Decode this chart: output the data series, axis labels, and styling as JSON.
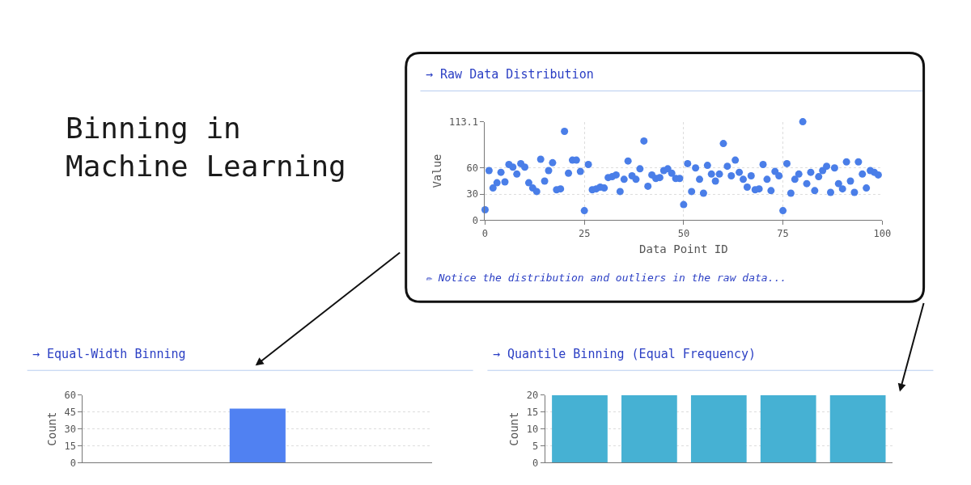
{
  "chart_data": [
    {
      "type": "other",
      "title": "Binning in\nMachine Learning"
    },
    {
      "type": "scatter",
      "title": "→ Raw Data Distribution",
      "xlabel": "Data Point ID",
      "ylabel": "Value",
      "x": [
        0,
        1,
        2,
        3,
        4,
        5,
        6,
        7,
        8,
        9,
        10,
        11,
        12,
        13,
        14,
        15,
        16,
        17,
        18,
        19,
        20,
        21,
        22,
        23,
        24,
        25,
        26,
        27,
        28,
        29,
        30,
        31,
        32,
        33,
        34,
        35,
        36,
        37,
        38,
        39,
        40,
        41,
        42,
        43,
        44,
        45,
        46,
        47,
        48,
        49,
        50,
        51,
        52,
        53,
        54,
        55,
        56,
        57,
        58,
        59,
        60,
        61,
        62,
        63,
        64,
        65,
        66,
        67,
        68,
        69,
        70,
        71,
        72,
        73,
        74,
        75,
        76,
        77,
        78,
        79,
        80,
        81,
        82,
        83,
        84,
        85,
        86,
        87,
        88,
        89,
        90,
        91,
        92,
        93,
        94,
        95,
        96,
        97,
        98,
        99
      ],
      "values": [
        12,
        57,
        37,
        43,
        55,
        44,
        64,
        61,
        53,
        65,
        61,
        43,
        37,
        33,
        70,
        45,
        57,
        66,
        35,
        36,
        102,
        54,
        69,
        69,
        56,
        11,
        64,
        35,
        36,
        38,
        37,
        49,
        50,
        52,
        33,
        47,
        68,
        51,
        47,
        59,
        91,
        39,
        52,
        48,
        49,
        57,
        59,
        54,
        48,
        48,
        18,
        65,
        33,
        60,
        47,
        31,
        63,
        53,
        45,
        53,
        88,
        62,
        51,
        69,
        55,
        47,
        38,
        51,
        35,
        36,
        64,
        47,
        34,
        56,
        51,
        11,
        65,
        31,
        47,
        53,
        113.1,
        42,
        55,
        34,
        50,
        57,
        62,
        32,
        60,
        42,
        36,
        67,
        45,
        32,
        67,
        53,
        37,
        57,
        55,
        52
      ],
      "color": "#4a7ee8",
      "marker": "circle",
      "xlim": [
        0,
        100
      ],
      "xticks": [
        0,
        25,
        50,
        75,
        100
      ],
      "ylim": [
        0,
        113.1
      ],
      "yticks": [
        0,
        30,
        60,
        113.1
      ],
      "grid": true,
      "annotations": [
        "✏ Notice the distribution and outliers in the raw data..."
      ]
    },
    {
      "type": "bar",
      "title": "→ Equal-Width Binning",
      "ylabel": "Count",
      "categories": [
        null,
        null,
        null,
        null,
        null
      ],
      "values": [
        null,
        null,
        48,
        null,
        null
      ],
      "color": "#5081f2",
      "ylim": [
        0,
        60
      ],
      "yticks": [
        0,
        15,
        30,
        45,
        60
      ],
      "grid": true
    },
    {
      "type": "bar",
      "title": "→ Quantile Binning (Equal Frequency)",
      "ylabel": "Count",
      "categories": [
        null,
        null,
        null,
        null,
        null
      ],
      "values": [
        20,
        20,
        20,
        20,
        20
      ],
      "color": "#46b1d3",
      "ylim": [
        0,
        20
      ],
      "yticks": [
        0,
        5,
        10,
        15,
        20
      ],
      "grid": true
    }
  ]
}
